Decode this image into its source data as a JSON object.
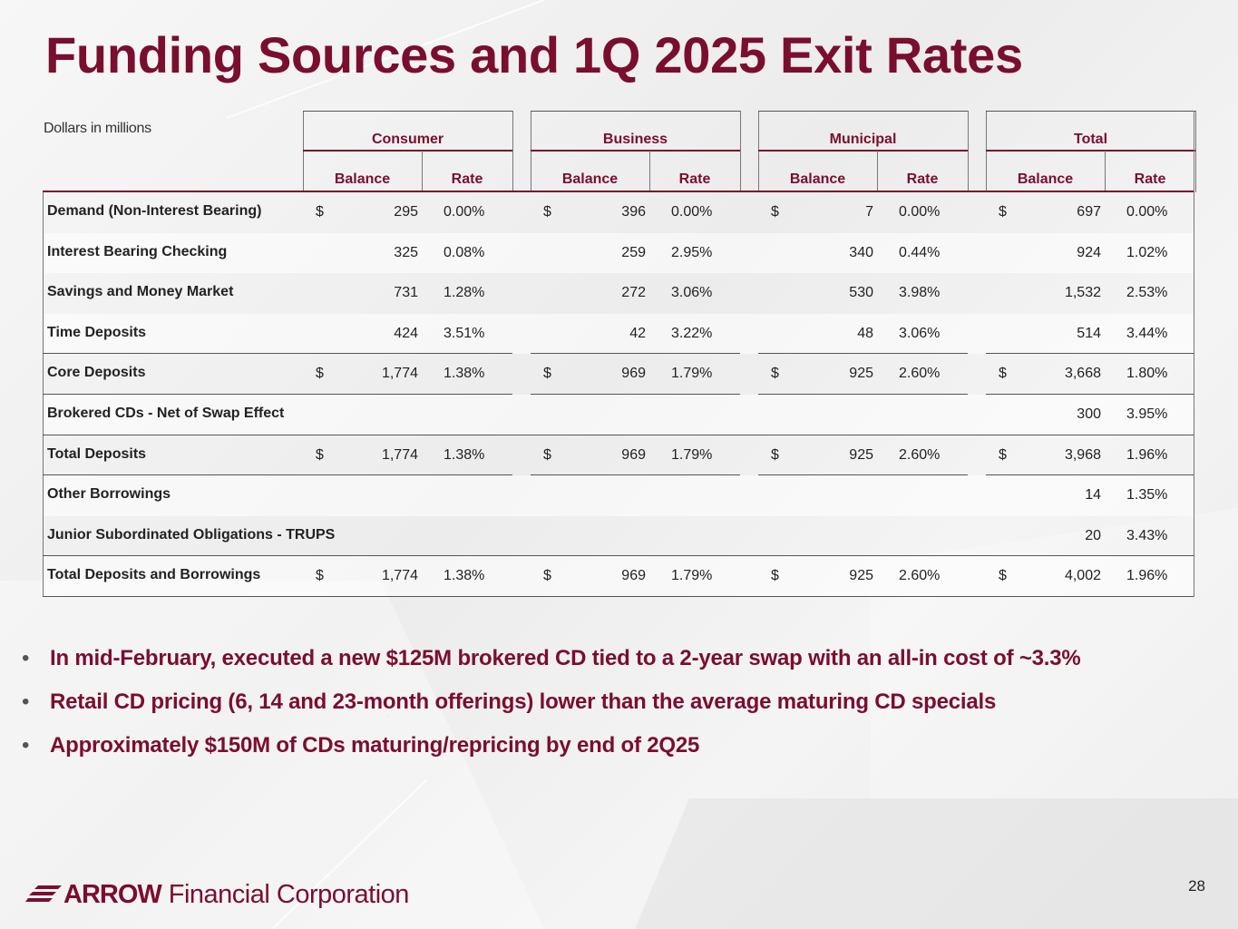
{
  "title": "Funding Sources and 1Q 2025 Exit Rates",
  "units_note": "Dollars in millions",
  "groups": [
    "Consumer",
    "Business",
    "Municipal",
    "Total"
  ],
  "subheaders": {
    "balance": "Balance",
    "rate": "Rate"
  },
  "currency_symbol": "$",
  "rows": [
    {
      "label": "Demand (Non-Interest Bearing)",
      "dollar": true,
      "cells": [
        [
          "295",
          "0.00%"
        ],
        [
          "396",
          "0.00%"
        ],
        [
          "7",
          "0.00%"
        ],
        [
          "697",
          "0.00%"
        ]
      ]
    },
    {
      "label": "Interest Bearing Checking",
      "dollar": false,
      "cells": [
        [
          "325",
          "0.08%"
        ],
        [
          "259",
          "2.95%"
        ],
        [
          "340",
          "0.44%"
        ],
        [
          "924",
          "1.02%"
        ]
      ]
    },
    {
      "label": "Savings and Money Market",
      "dollar": false,
      "cells": [
        [
          "731",
          "1.28%"
        ],
        [
          "272",
          "3.06%"
        ],
        [
          "530",
          "3.98%"
        ],
        [
          "1,532",
          "2.53%"
        ]
      ]
    },
    {
      "label": "Time Deposits",
      "dollar": false,
      "cells": [
        [
          "424",
          "3.51%"
        ],
        [
          "42",
          "3.22%"
        ],
        [
          "48",
          "3.06%"
        ],
        [
          "514",
          "3.44%"
        ]
      ]
    },
    {
      "label": "Core Deposits",
      "dollar": true,
      "cells": [
        [
          "1,774",
          "1.38%"
        ],
        [
          "969",
          "1.79%"
        ],
        [
          "925",
          "2.60%"
        ],
        [
          "3,668",
          "1.80%"
        ]
      ]
    },
    {
      "label": "Brokered CDs - Net of Swap Effect",
      "dollar": false,
      "cells": [
        [
          "",
          ""
        ],
        [
          "",
          ""
        ],
        [
          "",
          ""
        ],
        [
          "300",
          "3.95%"
        ]
      ]
    },
    {
      "label": "Total Deposits",
      "dollar": true,
      "cells": [
        [
          "1,774",
          "1.38%"
        ],
        [
          "969",
          "1.79%"
        ],
        [
          "925",
          "2.60%"
        ],
        [
          "3,968",
          "1.96%"
        ]
      ]
    },
    {
      "label": "Other Borrowings",
      "dollar": false,
      "cells": [
        [
          "",
          ""
        ],
        [
          "",
          ""
        ],
        [
          "",
          ""
        ],
        [
          "14",
          "1.35%"
        ]
      ]
    },
    {
      "label": "Junior Subordinated Obligations - TRUPS",
      "dollar": false,
      "cells": [
        [
          "",
          ""
        ],
        [
          "",
          ""
        ],
        [
          "",
          ""
        ],
        [
          "20",
          "3.43%"
        ]
      ]
    },
    {
      "label": "Total Deposits and Borrowings",
      "dollar": true,
      "cells": [
        [
          "1,774",
          "1.38%"
        ],
        [
          "969",
          "1.79%"
        ],
        [
          "925",
          "2.60%"
        ],
        [
          "4,002",
          "1.96%"
        ]
      ]
    }
  ],
  "bullets": [
    "In mid-February, executed a new $125M brokered CD tied to a 2-year swap with an all-in cost of ~3.3%",
    "Retail CD pricing (6, 14 and 23-month offerings) lower than the average maturing CD specials",
    "Approximately $150M of CDs maturing/repricing by end of 2Q25"
  ],
  "bullet_glyph": "•",
  "logo": {
    "word": "ARROW",
    "rest": "Financial Corporation"
  },
  "page_number": "28",
  "colors": {
    "brand": "#7a0e2e",
    "text": "#222222"
  }
}
